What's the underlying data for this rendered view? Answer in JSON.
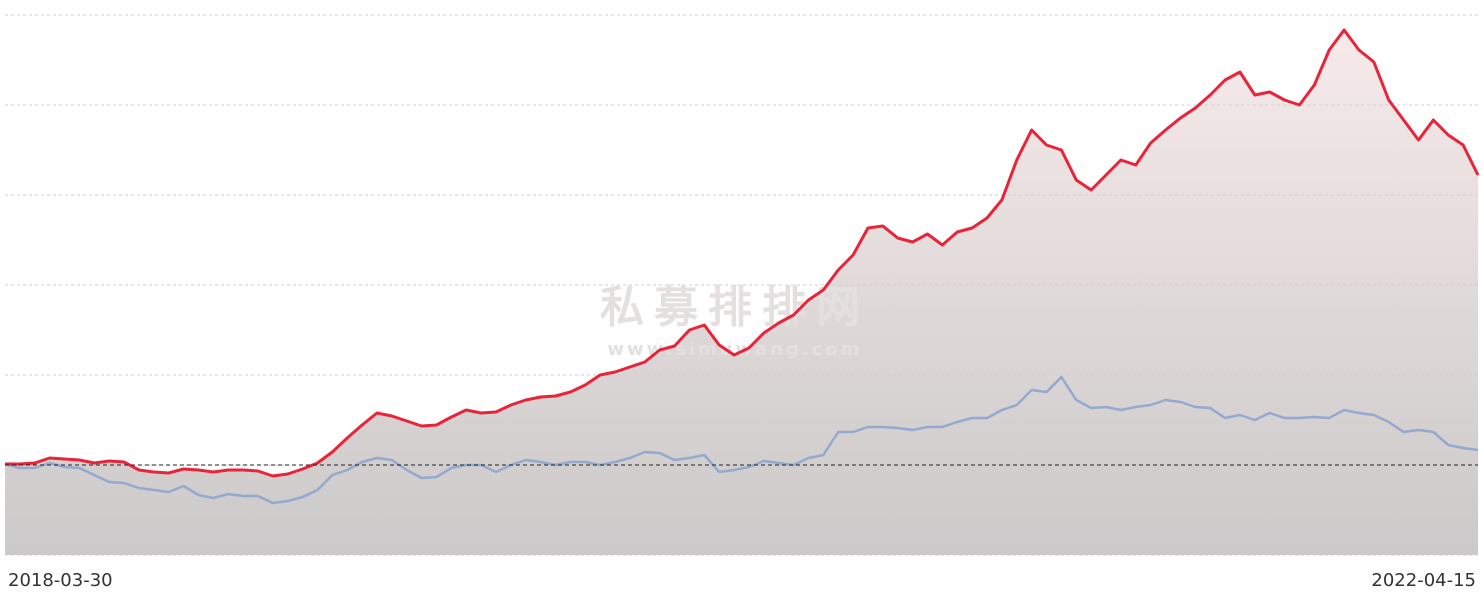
{
  "chart_data": {
    "type": "line",
    "watermark": [
      "私募排排网",
      "www.simuwang.com"
    ],
    "categories": [
      "2018-03-30",
      null,
      null,
      null,
      null,
      null,
      null,
      null,
      null,
      null,
      null,
      null,
      null,
      null,
      null,
      null,
      null,
      null,
      null,
      null,
      null,
      null,
      null,
      null,
      null,
      null,
      null,
      null,
      null,
      null,
      null,
      null,
      null,
      null,
      null,
      null,
      null,
      null,
      null,
      null,
      null,
      null,
      null,
      null,
      null,
      null,
      null,
      null,
      null,
      null,
      null,
      null,
      null,
      null,
      null,
      null,
      null,
      null,
      null,
      null,
      null,
      null,
      null,
      null,
      null,
      null,
      null,
      null,
      null,
      null,
      null,
      null,
      null,
      null,
      null,
      null,
      null,
      null,
      null,
      null,
      null,
      null,
      null,
      null,
      null,
      null,
      null,
      null,
      null,
      null,
      null,
      null,
      null,
      null,
      null,
      null,
      null,
      null,
      null,
      "2022-04-15"
    ],
    "series": [
      {
        "color": "#e8243a",
        "values": [
          1,
          1,
          2,
          7,
          6,
          5,
          2,
          4,
          3,
          -5,
          -7,
          -8,
          -4,
          -5,
          -7,
          -5,
          -5,
          -6,
          -11,
          -9,
          -4,
          2,
          13,
          27,
          40,
          52,
          49,
          44,
          39,
          40,
          48,
          55,
          52,
          53,
          60,
          65,
          68,
          69,
          73,
          80,
          90,
          93,
          98,
          103,
          115,
          119,
          135,
          140,
          120,
          110,
          117,
          132,
          142,
          150,
          165,
          175,
          195,
          210,
          237,
          239,
          227,
          223,
          231,
          220,
          233,
          237,
          247,
          265,
          305,
          335,
          320,
          315,
          285,
          275,
          290,
          305,
          300,
          322,
          335,
          347,
          357,
          370,
          385,
          393,
          370,
          373,
          365,
          360,
          380,
          415,
          435,
          415,
          403,
          365,
          345,
          325,
          345,
          330,
          320,
          290
        ]
      },
      {
        "color": "#94a9cf",
        "values": [
          1,
          -3,
          -3,
          2,
          -2,
          -3,
          -10,
          -17,
          -18,
          -23,
          -25,
          -27,
          -21,
          -30,
          -33,
          -29,
          -31,
          -31,
          -38,
          -36,
          -32,
          -25,
          -10,
          -5,
          3,
          7,
          5,
          -5,
          -13,
          -12,
          -3,
          0,
          0,
          -7,
          0,
          5,
          3,
          0,
          3,
          3,
          0,
          3,
          7,
          13,
          12,
          5,
          7,
          10,
          -7,
          -5,
          -2,
          4,
          2,
          0,
          7,
          10,
          33,
          33,
          38,
          38,
          37,
          35,
          38,
          38,
          43,
          47,
          47,
          55,
          60,
          75,
          73,
          88,
          65,
          57,
          58,
          55,
          58,
          60,
          65,
          63,
          58,
          57,
          47,
          50,
          45,
          52,
          47,
          47,
          48,
          47,
          55,
          52,
          50,
          43,
          33,
          35,
          33,
          20,
          17,
          15
        ]
      }
    ],
    "baseline": 0,
    "ylim": [
      -90,
      450
    ],
    "yticks": [
      -90,
      0,
      90,
      180,
      270,
      360,
      450
    ],
    "grid": true
  }
}
